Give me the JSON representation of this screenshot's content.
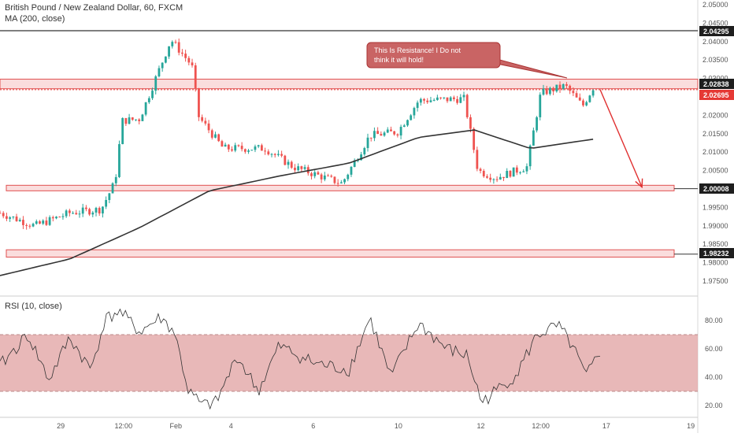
{
  "header": {
    "symbol": "British Pound / New Zealand Dollar, 60, FXCM",
    "ma_label": "MA (200, close)",
    "rsi_label": "RSI (10, close)"
  },
  "colors": {
    "up": "#26a69a",
    "down": "#ef5350",
    "ma": "#333333",
    "zone_fill": "#f4b4b4",
    "zone_stroke": "#e05050",
    "rsi_band": "#e0a0a0",
    "note_fill": "#c96464",
    "arrow": "#e03030",
    "tag_black": "#1e1e1e",
    "tag_red": "#e53935"
  },
  "annotation": {
    "text_line1": "This Is Resistance! I Do not",
    "text_line2": "think it will hold!"
  },
  "price_tags": [
    {
      "value": "2.04295",
      "color": "black"
    },
    {
      "value": "2.02838",
      "color": "black"
    },
    {
      "value": "2.02695",
      "color": "red"
    },
    {
      "value": "2.00008",
      "color": "black"
    },
    {
      "value": "1.98232",
      "color": "black"
    }
  ],
  "chart_data": {
    "type": "candlestick",
    "title": "British Pound / New Zealand Dollar, 60, FXCM",
    "price_axis": {
      "ylim": [
        1.972,
        2.052
      ],
      "ticks": [
        "2.05000",
        "2.04500",
        "2.04000",
        "2.03500",
        "2.03000",
        "2.02500",
        "2.02000",
        "2.01500",
        "2.01000",
        "2.00500",
        "2.00000",
        "1.99500",
        "1.99000",
        "1.98500",
        "1.98000",
        "1.97500"
      ]
    },
    "time_axis": {
      "ticks": [
        "29",
        "12:00",
        "Feb",
        "4",
        "6",
        "10",
        "12",
        "12:00",
        "17",
        "19"
      ]
    },
    "price_path_keypoints": [
      {
        "t": 0,
        "p": 1.9935
      },
      {
        "t": 0.05,
        "p": 1.99
      },
      {
        "t": 0.1,
        "p": 1.9935
      },
      {
        "t": 0.145,
        "p": 1.9945
      },
      {
        "t": 0.165,
        "p": 2.002
      },
      {
        "t": 0.175,
        "p": 2.0185
      },
      {
        "t": 0.2,
        "p": 2.019
      },
      {
        "t": 0.22,
        "p": 2.0285
      },
      {
        "t": 0.245,
        "p": 2.0405
      },
      {
        "t": 0.275,
        "p": 2.0335
      },
      {
        "t": 0.285,
        "p": 2.0195
      },
      {
        "t": 0.32,
        "p": 2.011
      },
      {
        "t": 0.38,
        "p": 2.011
      },
      {
        "t": 0.42,
        "p": 2.006
      },
      {
        "t": 0.49,
        "p": 2.0015
      },
      {
        "t": 0.53,
        "p": 2.0145
      },
      {
        "t": 0.57,
        "p": 2.0155
      },
      {
        "t": 0.6,
        "p": 2.024
      },
      {
        "t": 0.665,
        "p": 2.0245
      },
      {
        "t": 0.685,
        "p": 2.005
      },
      {
        "t": 0.71,
        "p": 2.003
      },
      {
        "t": 0.755,
        "p": 2.006
      },
      {
        "t": 0.775,
        "p": 2.026
      },
      {
        "t": 0.81,
        "p": 2.028
      },
      {
        "t": 0.835,
        "p": 2.0225
      },
      {
        "t": 0.85,
        "p": 2.0275
      }
    ],
    "moving_average": {
      "name": "MA (200, close)",
      "points": [
        {
          "t": 0,
          "p": 1.9765
        },
        {
          "t": 0.1,
          "p": 1.981
        },
        {
          "t": 0.2,
          "p": 1.9895
        },
        {
          "t": 0.3,
          "p": 1.9995
        },
        {
          "t": 0.4,
          "p": 2.0035
        },
        {
          "t": 0.5,
          "p": 2.007
        },
        {
          "t": 0.6,
          "p": 2.014
        },
        {
          "t": 0.68,
          "p": 2.016
        },
        {
          "t": 0.76,
          "p": 2.011
        },
        {
          "t": 0.85,
          "p": 2.0135
        }
      ]
    },
    "levels": [
      {
        "value": 2.04295,
        "kind": "line"
      },
      {
        "value": 2.02838,
        "kind": "zone",
        "low": 2.0272,
        "high": 2.0298
      },
      {
        "value": 2.02695,
        "kind": "dotted"
      },
      {
        "value": 2.00008,
        "kind": "zone",
        "low": 1.9995,
        "high": 2.001
      },
      {
        "value": 1.98232,
        "kind": "zone",
        "low": 1.9815,
        "high": 1.9835
      }
    ],
    "projection": {
      "from": {
        "t": 0.86,
        "p": 2.027
      },
      "to": {
        "t": 0.92,
        "p": 2.0005
      }
    },
    "rsi": {
      "name": "RSI (10, close)",
      "ylim": [
        15,
        90
      ],
      "ticks": [
        "80.00",
        "60.00",
        "40.00",
        "20.00"
      ],
      "band": [
        30,
        70
      ],
      "keypoints": [
        {
          "t": 0,
          "p": 48
        },
        {
          "t": 0.04,
          "p": 70
        },
        {
          "t": 0.07,
          "p": 38
        },
        {
          "t": 0.1,
          "p": 68
        },
        {
          "t": 0.13,
          "p": 45
        },
        {
          "t": 0.15,
          "p": 80
        },
        {
          "t": 0.17,
          "p": 87
        },
        {
          "t": 0.2,
          "p": 72
        },
        {
          "t": 0.23,
          "p": 82
        },
        {
          "t": 0.25,
          "p": 72
        },
        {
          "t": 0.27,
          "p": 30
        },
        {
          "t": 0.29,
          "p": 20
        },
        {
          "t": 0.31,
          "p": 22
        },
        {
          "t": 0.34,
          "p": 55
        },
        {
          "t": 0.37,
          "p": 30
        },
        {
          "t": 0.4,
          "p": 62
        },
        {
          "t": 0.45,
          "p": 50
        },
        {
          "t": 0.5,
          "p": 45
        },
        {
          "t": 0.53,
          "p": 82
        },
        {
          "t": 0.56,
          "p": 40
        },
        {
          "t": 0.6,
          "p": 78
        },
        {
          "t": 0.64,
          "p": 60
        },
        {
          "t": 0.67,
          "p": 55
        },
        {
          "t": 0.69,
          "p": 22
        },
        {
          "t": 0.71,
          "p": 30
        },
        {
          "t": 0.74,
          "p": 42
        },
        {
          "t": 0.77,
          "p": 70
        },
        {
          "t": 0.8,
          "p": 76
        },
        {
          "t": 0.82,
          "p": 62
        },
        {
          "t": 0.84,
          "p": 40
        },
        {
          "t": 0.86,
          "p": 58
        }
      ]
    }
  }
}
